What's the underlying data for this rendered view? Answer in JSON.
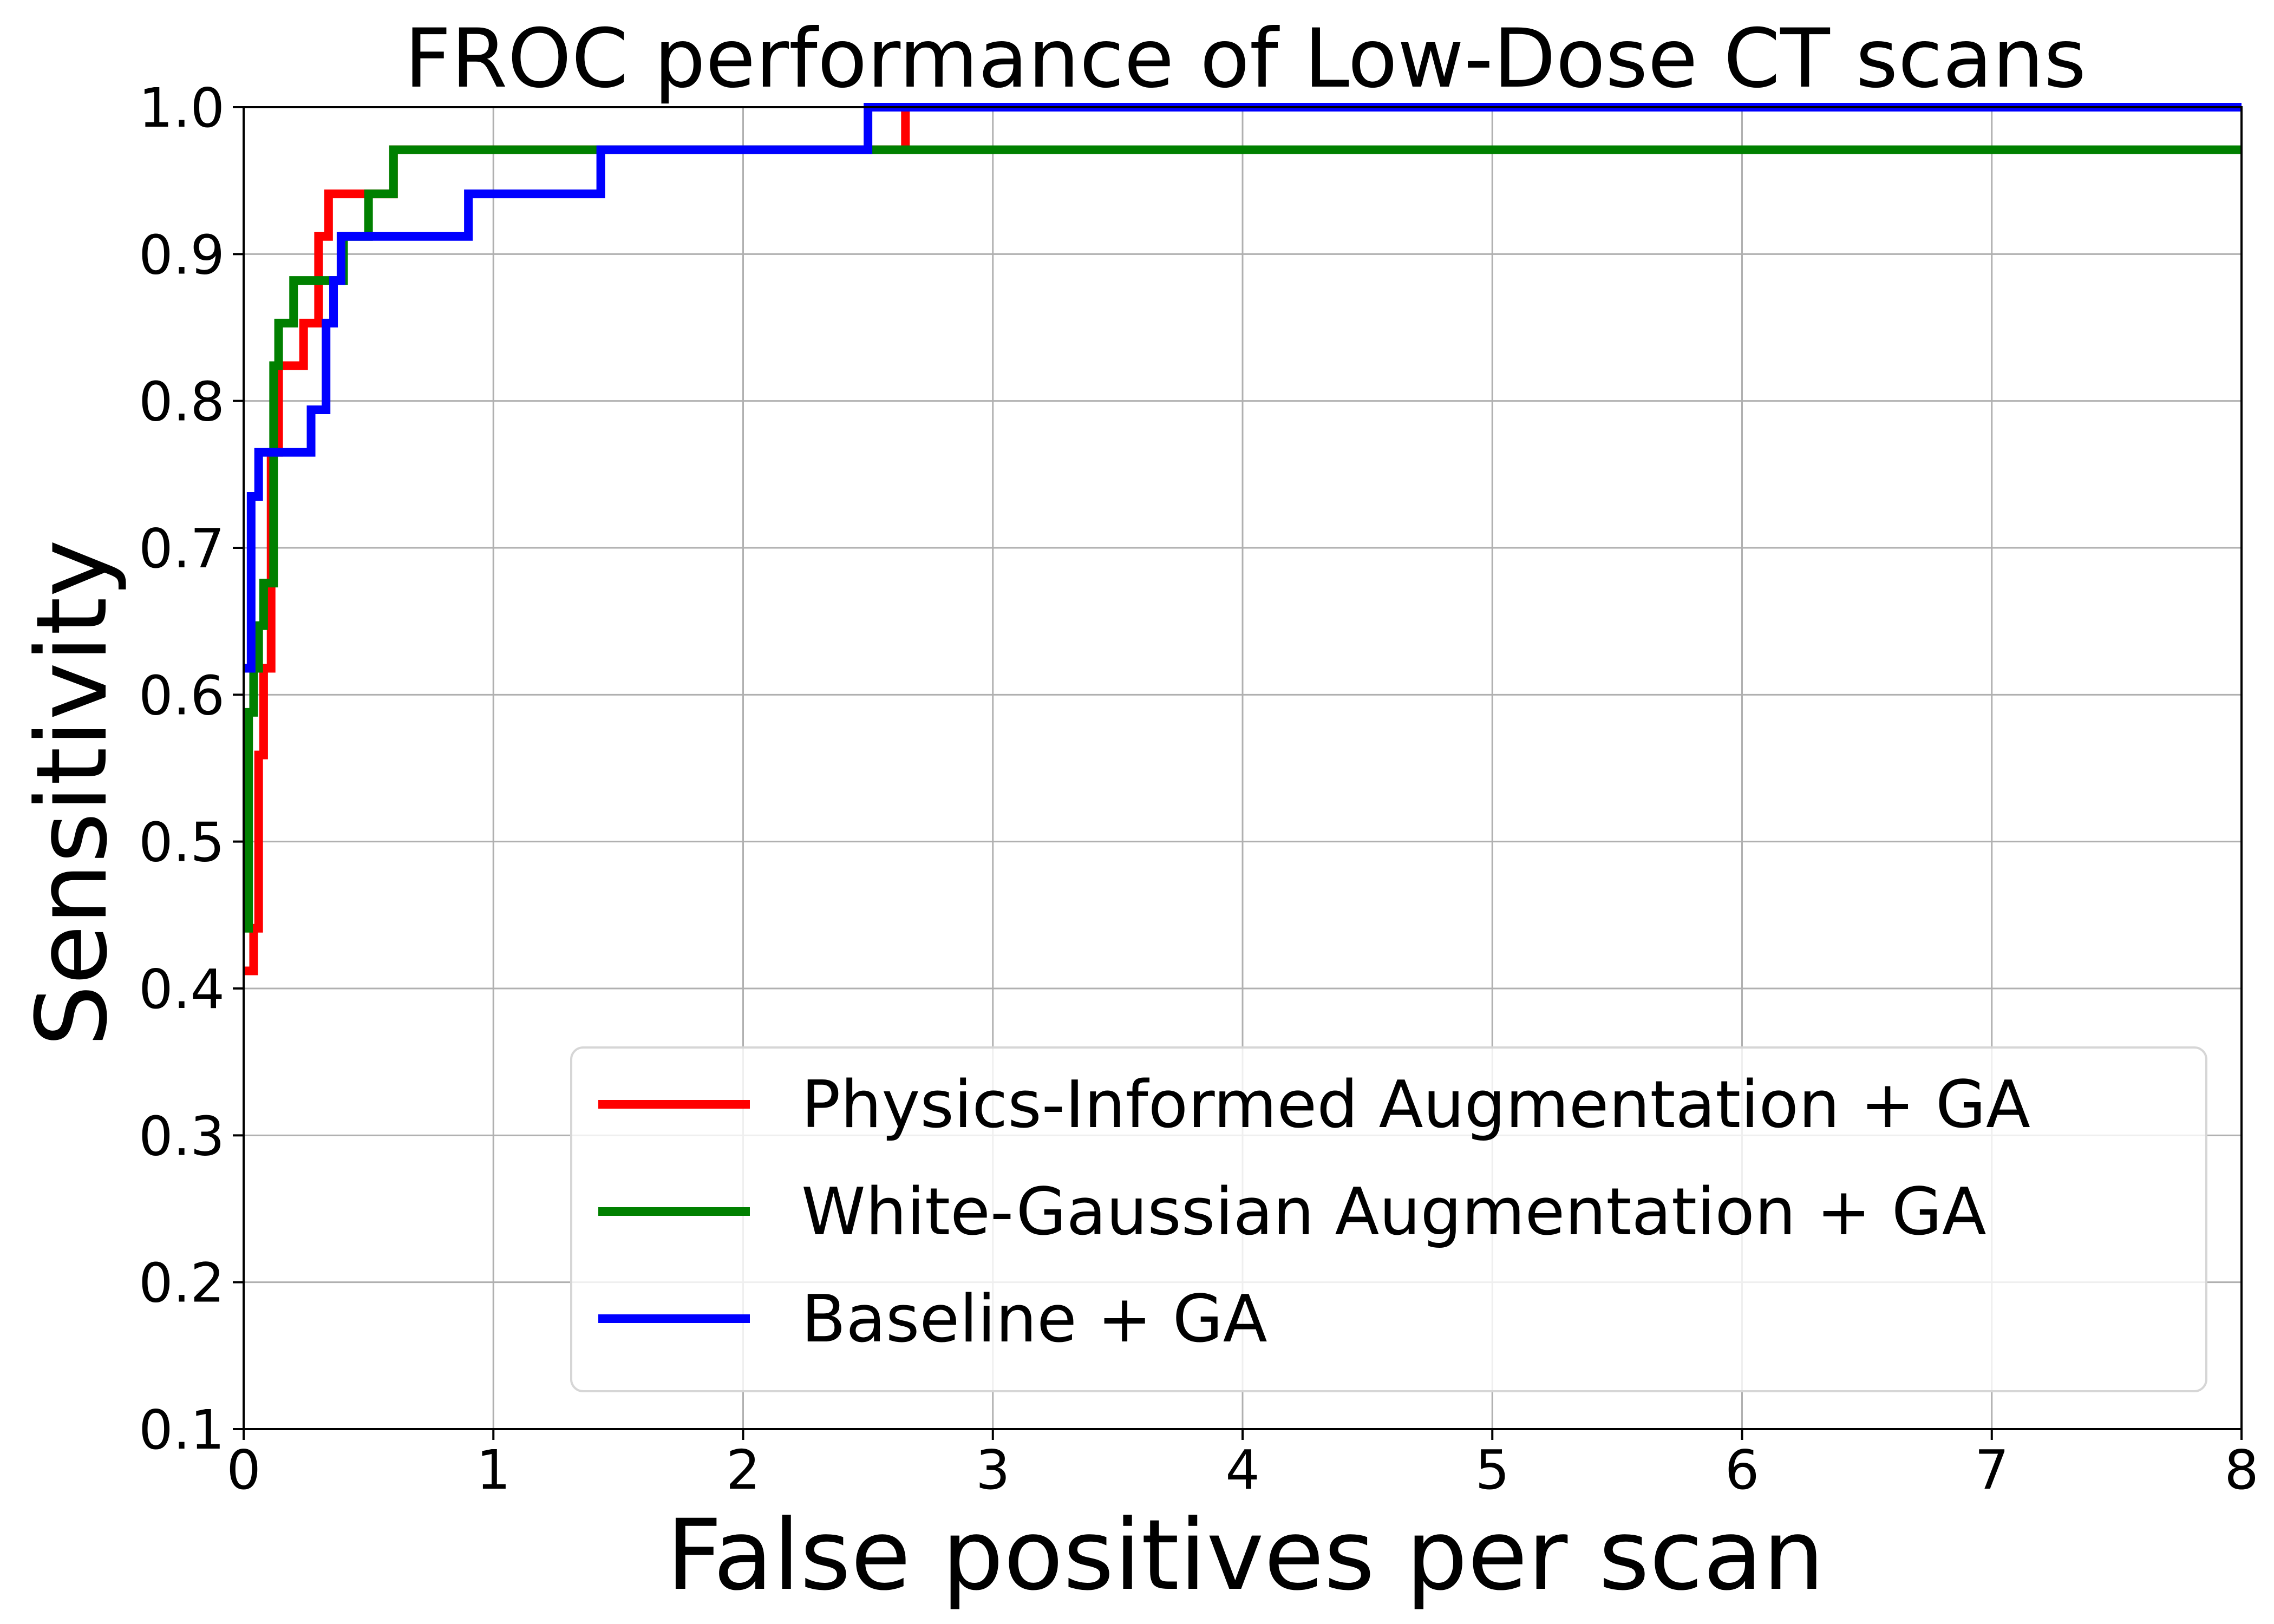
{
  "chart_data": {
    "type": "line",
    "title": "FROC performance of Low-Dose CT scans",
    "xlabel": "False positives per scan",
    "ylabel": "Sensitivity",
    "xlim": [
      0,
      8
    ],
    "ylim": [
      0.1,
      1.0
    ],
    "xticks": [
      0,
      1,
      2,
      3,
      4,
      5,
      6,
      7,
      8
    ],
    "yticks": [
      0.1,
      0.2,
      0.3,
      0.4,
      0.5,
      0.6,
      0.7,
      0.8,
      0.9,
      1.0
    ],
    "xtick_labels": [
      "0",
      "1",
      "2",
      "3",
      "4",
      "5",
      "6",
      "7",
      "8"
    ],
    "ytick_labels": [
      "0.1",
      "0.2",
      "0.3",
      "0.4",
      "0.5",
      "0.6",
      "0.7",
      "0.8",
      "0.9",
      "1.0"
    ],
    "grid": true,
    "legend_position": "bottom-right",
    "step": "post",
    "series": [
      {
        "name": "Physics-Informed Augmentation + GA",
        "color": "#ff0000",
        "x": [
          0.0,
          0.04,
          0.06,
          0.08,
          0.11,
          0.14,
          0.24,
          0.3,
          0.34,
          0.48,
          0.5,
          0.6,
          2.62,
          2.65,
          8.0
        ],
        "y": [
          0.412,
          0.441,
          0.559,
          0.618,
          0.765,
          0.824,
          0.853,
          0.912,
          0.941,
          0.941,
          0.941,
          0.971,
          0.971,
          1.0,
          1.0
        ]
      },
      {
        "name": "White-Gaussian Augmentation + GA",
        "color": "#008000",
        "x": [
          0.0,
          0.02,
          0.04,
          0.06,
          0.08,
          0.1,
          0.12,
          0.14,
          0.2,
          0.27,
          0.4,
          0.5,
          0.6,
          8.0
        ],
        "y": [
          0.441,
          0.588,
          0.618,
          0.647,
          0.676,
          0.676,
          0.824,
          0.853,
          0.882,
          0.882,
          0.912,
          0.941,
          0.971,
          0.971
        ]
      },
      {
        "name": "Baseline + GA",
        "color": "#0000ff",
        "x": [
          0.0,
          0.03,
          0.06,
          0.27,
          0.33,
          0.36,
          0.39,
          0.9,
          1.43,
          2.5,
          8.0
        ],
        "y": [
          0.618,
          0.735,
          0.765,
          0.794,
          0.853,
          0.882,
          0.912,
          0.941,
          0.971,
          1.0,
          1.0
        ]
      }
    ]
  }
}
